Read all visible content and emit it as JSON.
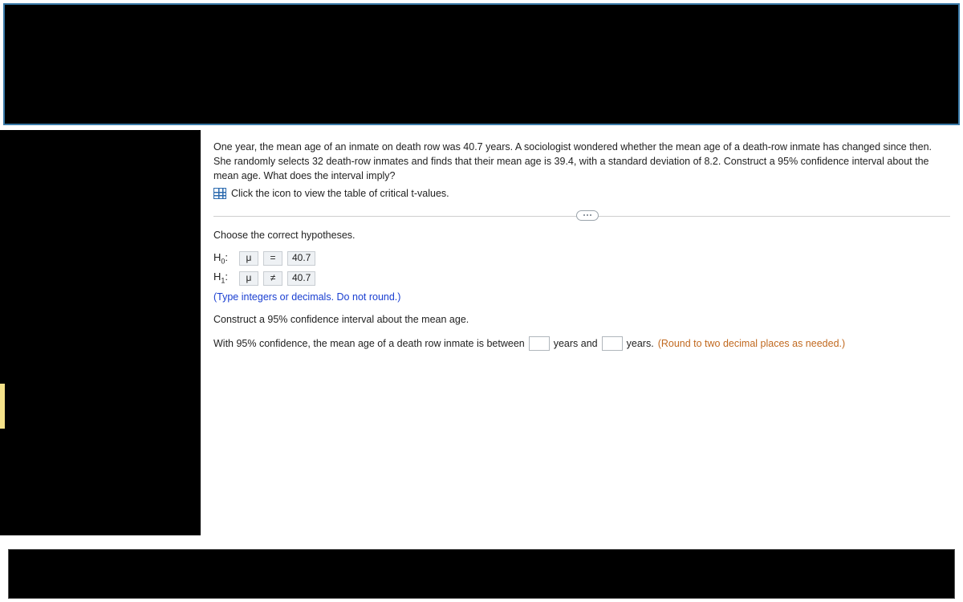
{
  "colors": {
    "black": "#000000",
    "border_blue": "#3a7aa8",
    "icon_blue": "#2b6aaf",
    "hint_blue": "#1a3fd1",
    "orange": "#c1691f",
    "box_bg": "#eef1f4",
    "box_border": "#c8cdd2",
    "divider": "#cfcfcf",
    "yellow_tab": "#f5e28a"
  },
  "problem": {
    "text": "One year, the mean age of an inmate on death row was 40.7 years. A sociologist wondered whether the mean age of a death-row inmate has changed since then. She randomly selects 32 death-row inmates and finds that their mean age is 39.4, with a standard deviation of 8.2. Construct a 95% confidence interval about the mean age. What does the interval imply?",
    "icon_link": "Click the icon to view the table of critical t-values."
  },
  "hypotheses": {
    "prompt": "Choose the correct hypotheses.",
    "h0": {
      "label": "H",
      "sub": "0",
      "colon": ":",
      "param": "μ",
      "op": "=",
      "value": "40.7"
    },
    "h1": {
      "label": "H",
      "sub": "1",
      "colon": ":",
      "param": "μ",
      "op": "≠",
      "value": "40.7"
    },
    "hint": "(Type integers or decimals. Do not round.)"
  },
  "ci": {
    "prompt": "Construct a 95% confidence interval about the mean age.",
    "pre": "With 95% confidence, the mean age of a death row inmate is between",
    "mid1": "years and",
    "mid2": "years.",
    "hint": "(Round to two decimal places as needed.)"
  }
}
